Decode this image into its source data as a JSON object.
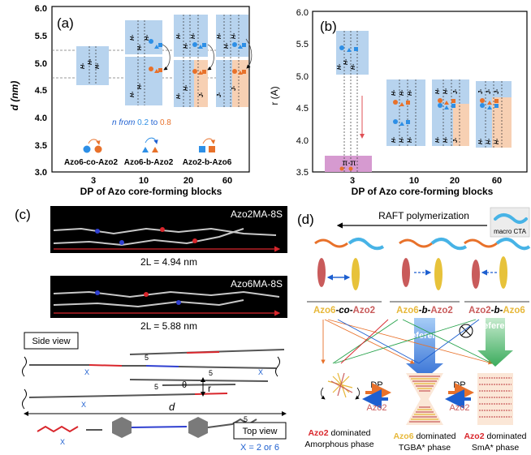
{
  "panel_a": {
    "label": "(a)",
    "ylabel": "d (nm)",
    "xlabel": "DP of Azo core-forming blocks",
    "yticks": [
      "3.0",
      "3.5",
      "4.0",
      "4.5",
      "5.0",
      "5.5",
      "6.0"
    ],
    "xticks": [
      "3",
      "10",
      "20",
      "60"
    ],
    "legend_n_prefix": "n from ",
    "legend_n_from": "0.2",
    "legend_n_to_word": " to ",
    "legend_n_to": "0.8",
    "legend_items": [
      "Azo6-co-Azo2",
      "Azo6-b-Azo2",
      "Azo2-b-Azo6"
    ],
    "layer_label": "H-",
    "layer_label_j": "J-"
  },
  "panel_b": {
    "label": "(b)",
    "ylabel": "r (A)",
    "xlabel": "DP of Azo core-forming blocks",
    "yticks": [
      "3.5",
      "4.0",
      "4.5",
      "5.0",
      "5.5",
      "6.0"
    ],
    "xticks": [
      "3",
      "10",
      "20",
      "60"
    ],
    "pi_label": "π-π"
  },
  "panel_c": {
    "label": "(c)",
    "mol1": "Azo2MA-8S",
    "mol1_len": "2L = 4.94 nm",
    "mol2": "Azo6MA-8S",
    "mol2_len": "2L = 5.88 nm",
    "side_view": "Side view",
    "top_view": "Top view",
    "x_eq": "X = 2 or 6",
    "sub5": "5",
    "subx": "X",
    "theta": "θ",
    "r": "r",
    "d": "d"
  },
  "panel_d": {
    "label": "(d)",
    "raft": "RAFT polymerization",
    "macro_cta": "macro CTA",
    "species": [
      {
        "a": "Azo6",
        "mid": "-co-",
        "b": "Azo2"
      },
      {
        "a": "Azo6",
        "mid": "-b-",
        "b": "Azo2"
      },
      {
        "a": "Azo2",
        "mid": "-b-",
        "b": "Azo6"
      }
    ],
    "preference": "Preference",
    "dp": "DP",
    "azo2": "Azo2",
    "phase1_a": "Azo2",
    "phase1_b": " dominated",
    "phase1_c": "Amorphous phase",
    "phase2_a": "Azo6",
    "phase2_b": " dominated",
    "phase2_c": "TGBA* phase",
    "phase3_a": "Azo2",
    "phase3_b": " dominated",
    "phase3_c": "SmA* phase"
  },
  "colors": {
    "blue_box": "#b7d3ee",
    "orange_box": "#f7d0b3",
    "pink_box": "#d69ad0",
    "blue": "#2d8fe6",
    "orange": "#e8712a",
    "red": "#d9262c",
    "yellow": "#e7b83a",
    "green": "#25a24a"
  }
}
